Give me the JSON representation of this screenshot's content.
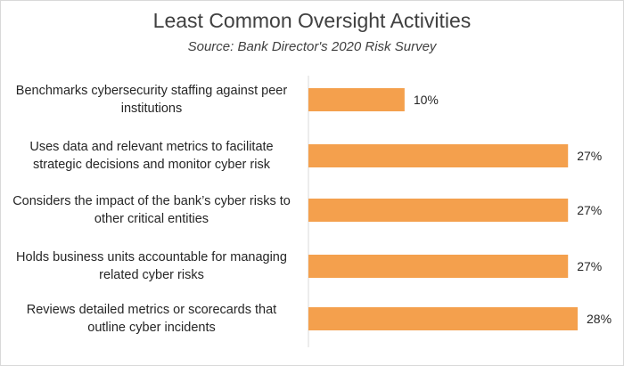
{
  "chart_data": {
    "type": "bar",
    "orientation": "horizontal",
    "title": "Least Common Oversight Activities",
    "subtitle": "Source: Bank Director's 2020 Risk Survey",
    "categories": [
      [
        "Benchmarks cybersecurity staffing against peer",
        "institutions"
      ],
      [
        "Uses data and relevant metrics to facilitate",
        "strategic decisions and monitor cyber risk"
      ],
      [
        "Considers the impact of the bank’s cyber risks to",
        "other critical entities"
      ],
      [
        "Holds business units accountable for managing",
        "related cyber risks"
      ],
      [
        "Reviews detailed metrics or scorecards that",
        "outline cyber incidents"
      ]
    ],
    "values": [
      10,
      27,
      27,
      27,
      28
    ],
    "value_labels": [
      "10%",
      "27%",
      "27%",
      "27%",
      "28%"
    ],
    "bar_color": "#F4A04D",
    "xlim": [
      0,
      28
    ],
    "grid": false,
    "legend": "none"
  }
}
